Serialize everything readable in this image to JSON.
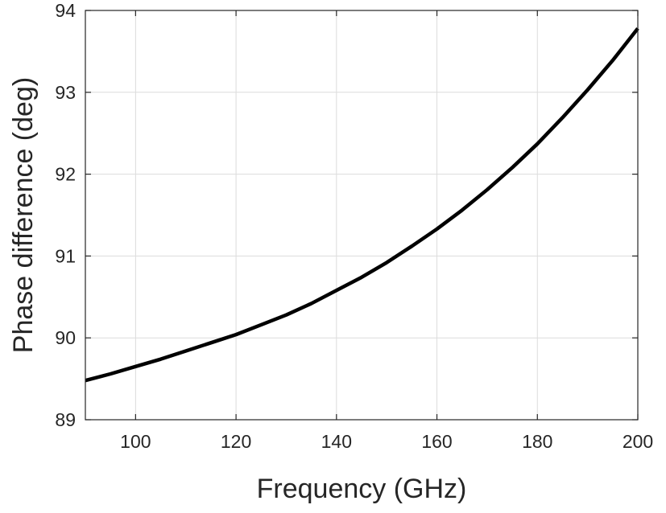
{
  "chart_data": {
    "type": "line",
    "title": "",
    "xlabel": "Frequency (GHz)",
    "ylabel": "Phase difference (deg)",
    "xlim": [
      90,
      200
    ],
    "ylim": [
      89,
      94
    ],
    "xticks": [
      100,
      120,
      140,
      160,
      180,
      200
    ],
    "yticks": [
      89,
      90,
      91,
      92,
      93,
      94
    ],
    "xtick_labels": [
      "100",
      "120",
      "140",
      "160",
      "180",
      "200"
    ],
    "ytick_labels": [
      "89",
      "90",
      "91",
      "92",
      "93",
      "94"
    ],
    "grid": true,
    "legend": "none",
    "colors": {
      "line": "#000000",
      "grid": "#dcdcdc",
      "axes": "#262626"
    },
    "series": [
      {
        "x": [
          90,
          95,
          100,
          105,
          110,
          115,
          120,
          125,
          130,
          135,
          140,
          145,
          150,
          155,
          160,
          165,
          170,
          175,
          180,
          185,
          190,
          195,
          200
        ],
        "y": [
          89.48,
          89.56,
          89.65,
          89.74,
          89.84,
          89.94,
          90.04,
          90.16,
          90.28,
          90.42,
          90.58,
          90.74,
          90.92,
          91.12,
          91.33,
          91.56,
          91.81,
          92.08,
          92.37,
          92.69,
          93.03,
          93.39,
          93.78
        ]
      }
    ]
  }
}
